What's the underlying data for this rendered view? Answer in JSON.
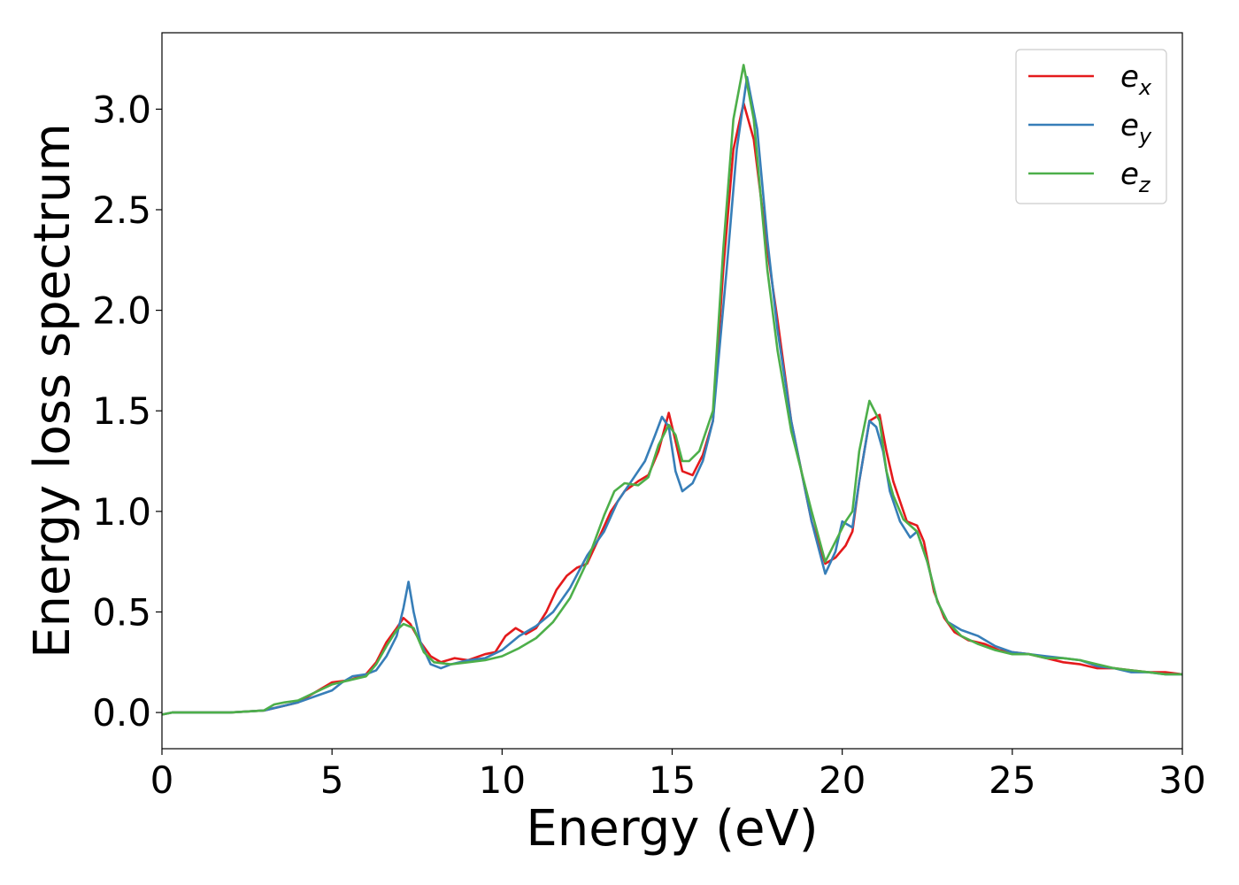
{
  "chart_data": {
    "type": "line",
    "title": "",
    "xlabel": "Energy (eV)",
    "ylabel": "Energy loss spectrum",
    "xlim": [
      0,
      30
    ],
    "ylim": [
      -0.18,
      3.38
    ],
    "xticks": [
      0,
      5,
      10,
      15,
      20,
      25,
      30
    ],
    "xtick_labels": [
      "0",
      "5",
      "10",
      "15",
      "20",
      "25",
      "30"
    ],
    "yticks": [
      0.0,
      0.5,
      1.0,
      1.5,
      2.0,
      2.5,
      3.0
    ],
    "ytick_labels": [
      "0.0",
      "0.5",
      "1.0",
      "1.5",
      "2.0",
      "2.5",
      "3.0"
    ],
    "grid": false,
    "legend_position": "top-right",
    "series": [
      {
        "name": "e_x",
        "label_base": "e",
        "label_sub": "x",
        "color": "#e41a1c",
        "points": [
          [
            0,
            -0.01
          ],
          [
            0.3,
            0
          ],
          [
            1,
            0
          ],
          [
            2,
            0
          ],
          [
            3,
            0.01
          ],
          [
            3.5,
            0.03
          ],
          [
            4,
            0.05
          ],
          [
            4.5,
            0.1
          ],
          [
            5,
            0.15
          ],
          [
            5.5,
            0.16
          ],
          [
            6,
            0.19
          ],
          [
            6.3,
            0.25
          ],
          [
            6.6,
            0.35
          ],
          [
            6.9,
            0.42
          ],
          [
            7.1,
            0.47
          ],
          [
            7.3,
            0.44
          ],
          [
            7.6,
            0.35
          ],
          [
            7.9,
            0.28
          ],
          [
            8.2,
            0.25
          ],
          [
            8.6,
            0.27
          ],
          [
            9,
            0.26
          ],
          [
            9.5,
            0.29
          ],
          [
            9.8,
            0.3
          ],
          [
            10.1,
            0.38
          ],
          [
            10.4,
            0.42
          ],
          [
            10.7,
            0.39
          ],
          [
            11,
            0.42
          ],
          [
            11.3,
            0.5
          ],
          [
            11.6,
            0.61
          ],
          [
            11.9,
            0.68
          ],
          [
            12.2,
            0.72
          ],
          [
            12.5,
            0.74
          ],
          [
            12.8,
            0.85
          ],
          [
            13.2,
            1.0
          ],
          [
            13.6,
            1.1
          ],
          [
            14,
            1.15
          ],
          [
            14.3,
            1.18
          ],
          [
            14.6,
            1.3
          ],
          [
            14.9,
            1.49
          ],
          [
            15.1,
            1.35
          ],
          [
            15.3,
            1.2
          ],
          [
            15.6,
            1.18
          ],
          [
            15.9,
            1.28
          ],
          [
            16.2,
            1.45
          ],
          [
            16.5,
            2.2
          ],
          [
            16.8,
            2.8
          ],
          [
            17.1,
            3.03
          ],
          [
            17.4,
            2.85
          ],
          [
            17.8,
            2.3
          ],
          [
            18.1,
            1.95
          ],
          [
            18.5,
            1.45
          ],
          [
            18.8,
            1.2
          ],
          [
            19.1,
            0.95
          ],
          [
            19.5,
            0.74
          ],
          [
            19.8,
            0.77
          ],
          [
            20.1,
            0.83
          ],
          [
            20.3,
            0.9
          ],
          [
            20.5,
            1.15
          ],
          [
            20.8,
            1.45
          ],
          [
            21.1,
            1.48
          ],
          [
            21.3,
            1.3
          ],
          [
            21.5,
            1.15
          ],
          [
            21.7,
            1.05
          ],
          [
            21.9,
            0.95
          ],
          [
            22.2,
            0.93
          ],
          [
            22.4,
            0.85
          ],
          [
            22.7,
            0.6
          ],
          [
            23,
            0.47
          ],
          [
            23.3,
            0.4
          ],
          [
            23.7,
            0.36
          ],
          [
            24.2,
            0.34
          ],
          [
            24.6,
            0.31
          ],
          [
            25,
            0.3
          ],
          [
            25.5,
            0.29
          ],
          [
            26,
            0.27
          ],
          [
            26.5,
            0.25
          ],
          [
            27,
            0.24
          ],
          [
            27.5,
            0.22
          ],
          [
            28,
            0.22
          ],
          [
            28.5,
            0.21
          ],
          [
            29,
            0.2
          ],
          [
            29.5,
            0.2
          ],
          [
            30,
            0.19
          ]
        ]
      },
      {
        "name": "e_y",
        "label_base": "e",
        "label_sub": "y",
        "color": "#377eb8",
        "points": [
          [
            0,
            -0.01
          ],
          [
            0.3,
            0
          ],
          [
            1,
            0
          ],
          [
            2,
            0
          ],
          [
            3,
            0.01
          ],
          [
            3.5,
            0.03
          ],
          [
            4,
            0.05
          ],
          [
            4.5,
            0.08
          ],
          [
            5,
            0.11
          ],
          [
            5.3,
            0.15
          ],
          [
            5.6,
            0.18
          ],
          [
            6,
            0.19
          ],
          [
            6.3,
            0.21
          ],
          [
            6.6,
            0.28
          ],
          [
            6.9,
            0.38
          ],
          [
            7.1,
            0.52
          ],
          [
            7.25,
            0.65
          ],
          [
            7.4,
            0.5
          ],
          [
            7.6,
            0.35
          ],
          [
            7.9,
            0.24
          ],
          [
            8.2,
            0.22
          ],
          [
            8.5,
            0.24
          ],
          [
            9,
            0.26
          ],
          [
            9.5,
            0.27
          ],
          [
            10,
            0.31
          ],
          [
            10.5,
            0.38
          ],
          [
            11,
            0.43
          ],
          [
            11.5,
            0.5
          ],
          [
            12,
            0.62
          ],
          [
            12.5,
            0.78
          ],
          [
            13,
            0.9
          ],
          [
            13.4,
            1.05
          ],
          [
            13.8,
            1.15
          ],
          [
            14.2,
            1.25
          ],
          [
            14.5,
            1.38
          ],
          [
            14.7,
            1.47
          ],
          [
            14.9,
            1.42
          ],
          [
            15.1,
            1.2
          ],
          [
            15.3,
            1.1
          ],
          [
            15.6,
            1.14
          ],
          [
            15.9,
            1.25
          ],
          [
            16.2,
            1.45
          ],
          [
            16.6,
            2.2
          ],
          [
            16.9,
            2.8
          ],
          [
            17.2,
            3.16
          ],
          [
            17.5,
            2.9
          ],
          [
            17.8,
            2.35
          ],
          [
            18.1,
            1.9
          ],
          [
            18.5,
            1.45
          ],
          [
            18.8,
            1.2
          ],
          [
            19.1,
            0.95
          ],
          [
            19.5,
            0.69
          ],
          [
            19.8,
            0.8
          ],
          [
            20,
            0.95
          ],
          [
            20.3,
            0.92
          ],
          [
            20.5,
            1.15
          ],
          [
            20.8,
            1.45
          ],
          [
            21,
            1.42
          ],
          [
            21.2,
            1.3
          ],
          [
            21.4,
            1.1
          ],
          [
            21.7,
            0.95
          ],
          [
            22,
            0.87
          ],
          [
            22.2,
            0.9
          ],
          [
            22.5,
            0.75
          ],
          [
            22.8,
            0.55
          ],
          [
            23.1,
            0.45
          ],
          [
            23.5,
            0.41
          ],
          [
            24,
            0.38
          ],
          [
            24.5,
            0.33
          ],
          [
            25,
            0.3
          ],
          [
            25.5,
            0.29
          ],
          [
            26,
            0.28
          ],
          [
            26.5,
            0.27
          ],
          [
            27,
            0.26
          ],
          [
            27.5,
            0.23
          ],
          [
            28,
            0.22
          ],
          [
            28.5,
            0.2
          ],
          [
            29,
            0.2
          ],
          [
            29.5,
            0.19
          ],
          [
            30,
            0.19
          ]
        ]
      },
      {
        "name": "e_z",
        "label_base": "e",
        "label_sub": "z",
        "color": "#4daf4a",
        "points": [
          [
            0,
            -0.01
          ],
          [
            0.3,
            0
          ],
          [
            1,
            0
          ],
          [
            2,
            0
          ],
          [
            3,
            0.01
          ],
          [
            3.3,
            0.04
          ],
          [
            3.6,
            0.05
          ],
          [
            4,
            0.06
          ],
          [
            4.5,
            0.1
          ],
          [
            5,
            0.14
          ],
          [
            5.5,
            0.16
          ],
          [
            6,
            0.18
          ],
          [
            6.3,
            0.24
          ],
          [
            6.6,
            0.33
          ],
          [
            6.9,
            0.41
          ],
          [
            7.1,
            0.44
          ],
          [
            7.4,
            0.42
          ],
          [
            7.7,
            0.3
          ],
          [
            8,
            0.25
          ],
          [
            8.5,
            0.24
          ],
          [
            9,
            0.25
          ],
          [
            9.5,
            0.26
          ],
          [
            10,
            0.28
          ],
          [
            10.5,
            0.32
          ],
          [
            11,
            0.37
          ],
          [
            11.5,
            0.45
          ],
          [
            12,
            0.57
          ],
          [
            12.5,
            0.75
          ],
          [
            13,
            0.98
          ],
          [
            13.3,
            1.1
          ],
          [
            13.6,
            1.14
          ],
          [
            14,
            1.13
          ],
          [
            14.3,
            1.17
          ],
          [
            14.6,
            1.33
          ],
          [
            14.9,
            1.43
          ],
          [
            15.1,
            1.38
          ],
          [
            15.3,
            1.25
          ],
          [
            15.5,
            1.25
          ],
          [
            15.8,
            1.3
          ],
          [
            16.2,
            1.5
          ],
          [
            16.5,
            2.3
          ],
          [
            16.8,
            2.95
          ],
          [
            17.1,
            3.22
          ],
          [
            17.4,
            2.95
          ],
          [
            17.8,
            2.2
          ],
          [
            18.1,
            1.8
          ],
          [
            18.5,
            1.4
          ],
          [
            18.8,
            1.2
          ],
          [
            19.1,
            1.0
          ],
          [
            19.5,
            0.75
          ],
          [
            19.8,
            0.85
          ],
          [
            20.1,
            0.95
          ],
          [
            20.3,
            1.0
          ],
          [
            20.5,
            1.3
          ],
          [
            20.8,
            1.55
          ],
          [
            21.1,
            1.45
          ],
          [
            21.3,
            1.2
          ],
          [
            21.5,
            1.08
          ],
          [
            21.8,
            0.96
          ],
          [
            22.2,
            0.9
          ],
          [
            22.5,
            0.75
          ],
          [
            22.8,
            0.55
          ],
          [
            23.1,
            0.45
          ],
          [
            23.5,
            0.38
          ],
          [
            24,
            0.34
          ],
          [
            24.5,
            0.31
          ],
          [
            25,
            0.29
          ],
          [
            25.5,
            0.29
          ],
          [
            26,
            0.27
          ],
          [
            26.5,
            0.27
          ],
          [
            27,
            0.26
          ],
          [
            27.5,
            0.24
          ],
          [
            28,
            0.22
          ],
          [
            28.5,
            0.21
          ],
          [
            29,
            0.2
          ],
          [
            29.5,
            0.19
          ],
          [
            30,
            0.19
          ]
        ]
      }
    ]
  }
}
